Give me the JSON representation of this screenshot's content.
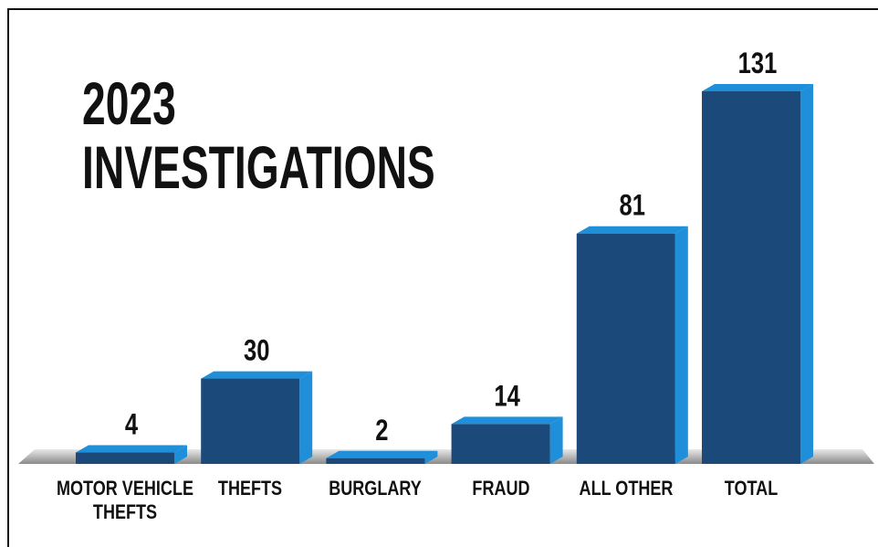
{
  "chart_data": {
    "type": "bar3d",
    "title": "2023 INVESTIGATIONS",
    "categories": [
      "MOTOR VEHICLE THEFTS",
      "THEFTS",
      "BURGLARY",
      "FRAUD",
      "ALL OTHER",
      "TOTAL"
    ],
    "values": [
      4,
      30,
      2,
      14,
      81,
      131
    ],
    "color": "#1b4a7a",
    "side_color": "#1e8fd8"
  }
}
